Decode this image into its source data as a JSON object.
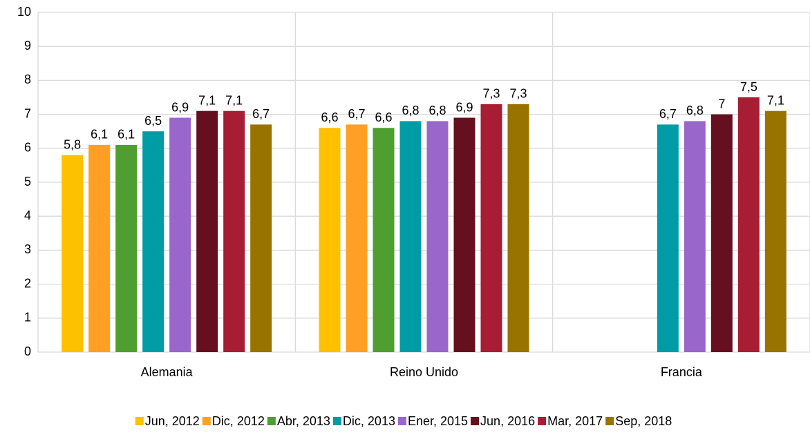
{
  "chart_data": {
    "type": "bar",
    "categories": [
      "Alemania",
      "Reino Unido",
      "Francia"
    ],
    "series": [
      {
        "name": "Jun, 2012",
        "color": "#ffc000",
        "values": [
          5.8,
          6.6,
          null
        ],
        "value_labels": [
          "5,8",
          "6,6",
          null
        ]
      },
      {
        "name": "Dic, 2012",
        "color": "#ffa024",
        "values": [
          6.1,
          6.7,
          null
        ],
        "value_labels": [
          "6,1",
          "6,7",
          null
        ]
      },
      {
        "name": "Abr, 2013",
        "color": "#4f9e31",
        "values": [
          6.1,
          6.6,
          null
        ],
        "value_labels": [
          "6,1",
          "6,6",
          null
        ]
      },
      {
        "name": "Dic, 2013",
        "color": "#009ca6",
        "values": [
          6.5,
          6.8,
          6.7
        ],
        "value_labels": [
          "6,5",
          "6,8",
          "6,7"
        ]
      },
      {
        "name": "Ener, 2015",
        "color": "#9966cc",
        "values": [
          6.9,
          6.8,
          6.8
        ],
        "value_labels": [
          "6,9",
          "6,8",
          "6,8"
        ]
      },
      {
        "name": "Jun, 2016",
        "color": "#66101f",
        "values": [
          7.1,
          6.9,
          7
        ],
        "value_labels": [
          "7,1",
          "6,9",
          "7"
        ]
      },
      {
        "name": "Mar, 2017",
        "color": "#a71d33",
        "values": [
          7.1,
          7.3,
          7.5
        ],
        "value_labels": [
          "7,1",
          "7,3",
          "7,5"
        ]
      },
      {
        "name": "Sep, 2018",
        "color": "#997300",
        "values": [
          6.7,
          7.3,
          7.1
        ],
        "value_labels": [
          "6,7",
          "7,3",
          "7,1"
        ]
      }
    ],
    "ylim": [
      0,
      10
    ],
    "yticks": [
      0,
      1,
      2,
      3,
      4,
      5,
      6,
      7,
      8,
      9,
      10
    ],
    "grid": true,
    "legend": "bottom"
  }
}
